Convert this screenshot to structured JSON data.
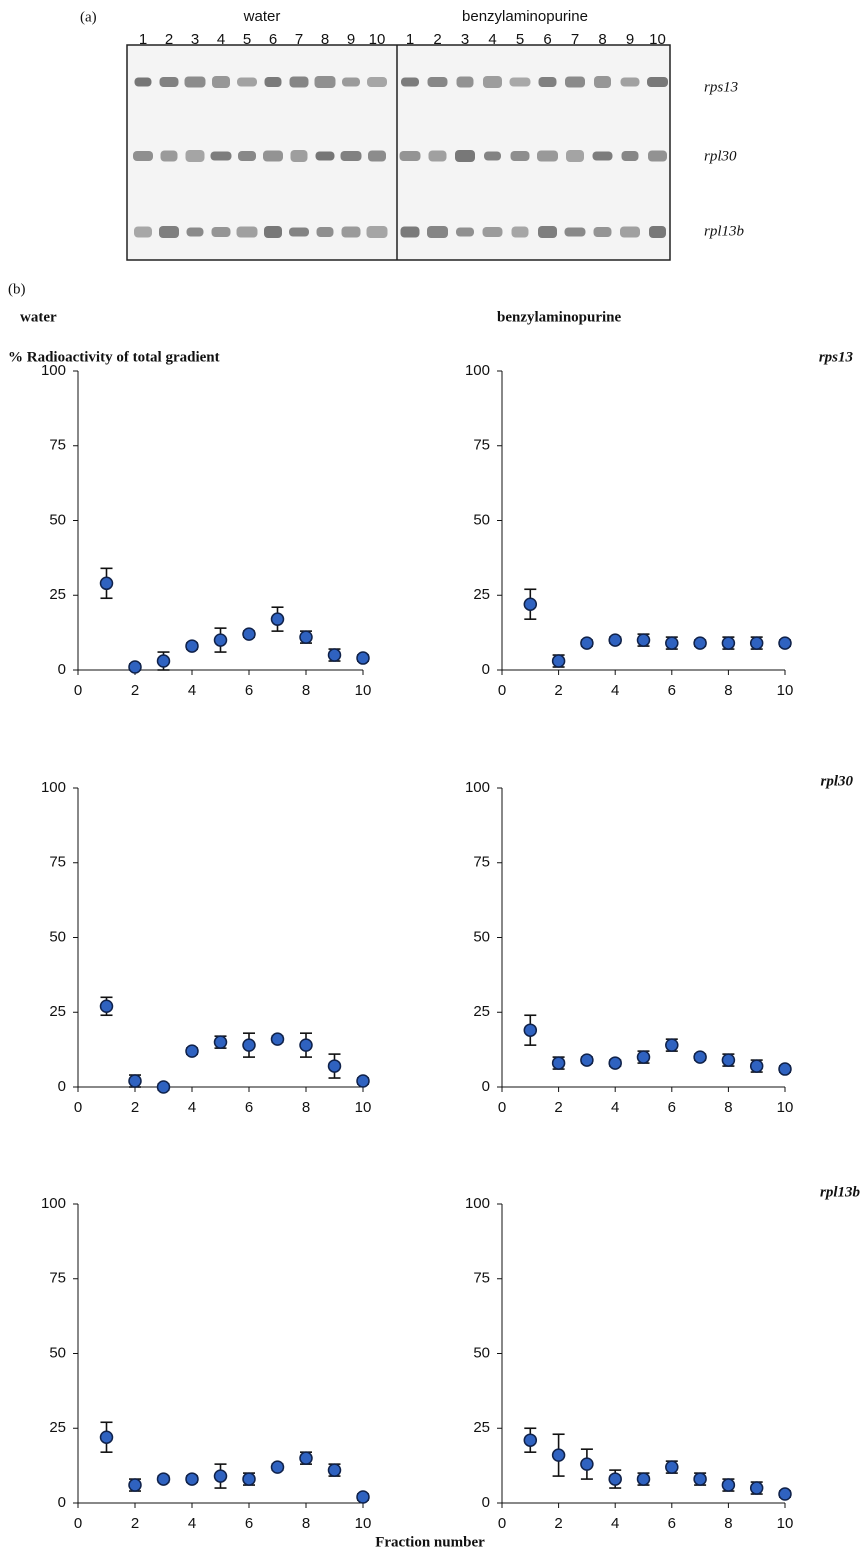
{
  "panel_a": {
    "label": "(a)",
    "groups": [
      "water",
      "benzylaminopurine"
    ],
    "water_lanes": [
      "1",
      "2",
      "3",
      "4",
      "5",
      "6",
      "7",
      "8",
      "9",
      "10"
    ],
    "bap_lanes": [
      "1",
      "2",
      "3",
      "4",
      "5",
      "6",
      "7",
      "8",
      "9",
      "10"
    ],
    "genes": [
      "rps13",
      "rpl30",
      "rpl13b"
    ]
  },
  "panel_b": {
    "label": "(b)",
    "columns": [
      "water",
      "benzylaminopurine"
    ],
    "y_label": "% Radioactivity of total gradient",
    "genes": [
      "rps13",
      "rpl30",
      "rpl13b"
    ],
    "x_label": "Fraction number"
  },
  "chart_data": [
    {
      "type": "scatter",
      "x": [
        1,
        2,
        3,
        4,
        5,
        6,
        7,
        8,
        9,
        10
      ],
      "values": [
        29,
        1,
        3,
        8,
        10,
        12,
        17,
        11,
        5,
        4
      ],
      "errors": [
        5,
        1,
        3,
        1,
        4,
        1,
        4,
        2,
        2,
        1
      ],
      "color": "#2f62c0",
      "xlim": [
        0,
        10
      ],
      "ylim": [
        0,
        100
      ],
      "xticks": [
        0,
        2,
        4,
        6,
        8,
        10
      ],
      "yticks": [
        0,
        25,
        50,
        75,
        100
      ]
    },
    {
      "type": "scatter",
      "x": [
        1,
        2,
        3,
        4,
        5,
        6,
        7,
        8,
        9,
        10
      ],
      "values": [
        22,
        3,
        9,
        10,
        10,
        9,
        9,
        9,
        9,
        9
      ],
      "errors": [
        5,
        2,
        1,
        1,
        2,
        2,
        1,
        2,
        2,
        1
      ],
      "color": "#2f62c0",
      "xlim": [
        0,
        10
      ],
      "ylim": [
        0,
        100
      ],
      "xticks": [
        0,
        2,
        4,
        6,
        8,
        10
      ],
      "yticks": [
        0,
        25,
        50,
        75,
        100
      ]
    },
    {
      "type": "scatter",
      "x": [
        1,
        2,
        3,
        4,
        5,
        6,
        7,
        8,
        9,
        10
      ],
      "values": [
        27,
        2,
        0,
        12,
        15,
        14,
        16,
        14,
        7,
        2
      ],
      "errors": [
        3,
        2,
        1,
        1,
        2,
        4,
        1,
        4,
        4,
        1
      ],
      "color": "#2f62c0",
      "xlim": [
        0,
        10
      ],
      "ylim": [
        0,
        100
      ],
      "xticks": [
        0,
        2,
        4,
        6,
        8,
        10
      ],
      "yticks": [
        0,
        25,
        50,
        75,
        100
      ]
    },
    {
      "type": "scatter",
      "x": [
        1,
        2,
        3,
        4,
        5,
        6,
        7,
        8,
        9,
        10
      ],
      "values": [
        19,
        8,
        9,
        8,
        10,
        14,
        10,
        9,
        7,
        6
      ],
      "errors": [
        5,
        2,
        1,
        1,
        2,
        2,
        1,
        2,
        2,
        1
      ],
      "color": "#2f62c0",
      "xlim": [
        0,
        10
      ],
      "ylim": [
        0,
        100
      ],
      "xticks": [
        0,
        2,
        4,
        6,
        8,
        10
      ],
      "yticks": [
        0,
        25,
        50,
        75,
        100
      ]
    },
    {
      "type": "scatter",
      "x": [
        1,
        2,
        3,
        4,
        5,
        6,
        7,
        8,
        9,
        10
      ],
      "values": [
        22,
        6,
        8,
        8,
        9,
        8,
        12,
        15,
        11,
        2
      ],
      "errors": [
        5,
        2,
        1,
        1,
        4,
        2,
        1,
        2,
        2,
        1
      ],
      "color": "#2f62c0",
      "xlim": [
        0,
        10
      ],
      "ylim": [
        0,
        100
      ],
      "xticks": [
        0,
        2,
        4,
        6,
        8,
        10
      ],
      "yticks": [
        0,
        25,
        50,
        75,
        100
      ]
    },
    {
      "type": "scatter",
      "x": [
        1,
        2,
        3,
        4,
        5,
        6,
        7,
        8,
        9,
        10
      ],
      "values": [
        21,
        16,
        13,
        8,
        8,
        12,
        8,
        6,
        5,
        3
      ],
      "errors": [
        4,
        7,
        5,
        3,
        2,
        2,
        2,
        2,
        2,
        1
      ],
      "color": "#2f62c0",
      "xlim": [
        0,
        10
      ],
      "ylim": [
        0,
        100
      ],
      "xticks": [
        0,
        2,
        4,
        6,
        8,
        10
      ],
      "yticks": [
        0,
        25,
        50,
        75,
        100
      ]
    }
  ]
}
